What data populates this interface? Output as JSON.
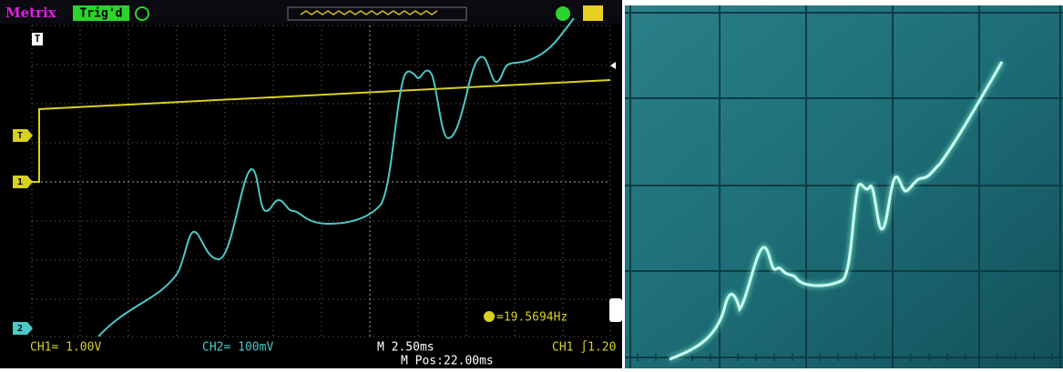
{
  "scope_screen": {
    "brand": "Metrix",
    "status": "Trig'd",
    "trigger_marker": "T",
    "level_marker": "T",
    "ch1_marker": "1",
    "ch2_marker": "2",
    "frequency": "=19.5694Hz",
    "ch1_scale": "CH1= 1.00V",
    "ch2_scale": "CH2= 100mV",
    "timebase": "M 2.50ms",
    "position": "M Pos:22.00ms",
    "trigger": "CH1 ∫1.20"
  }
}
